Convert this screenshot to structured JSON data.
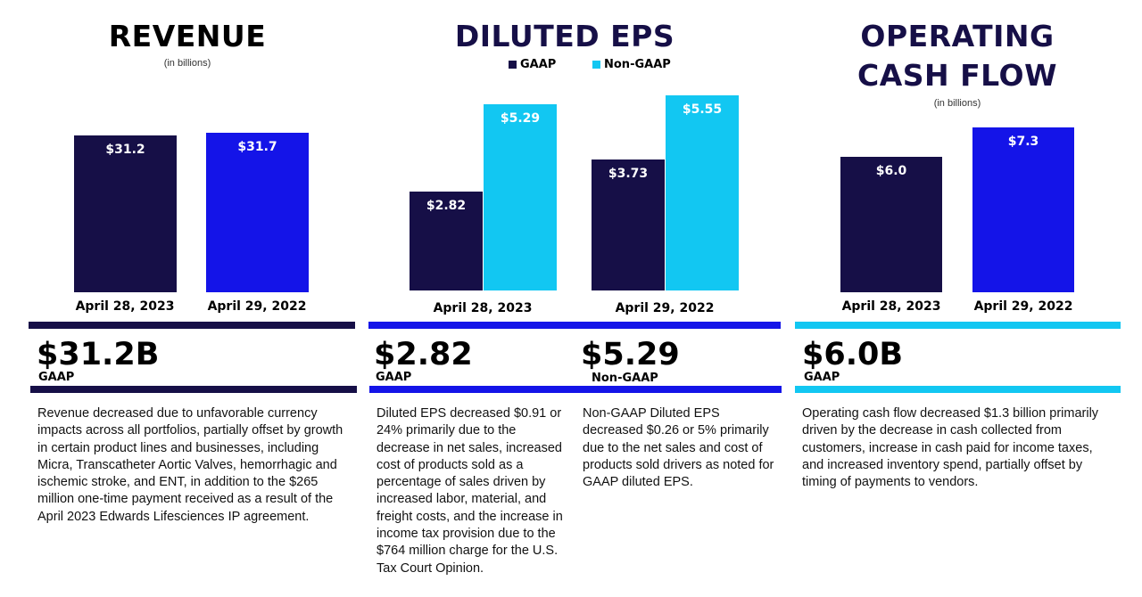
{
  "colors": {
    "navy": "#160f47",
    "blue": "#1414e8",
    "cyan": "#12c7f2"
  },
  "revenue": {
    "title": "REVENUE",
    "subtitle": "(in billions)",
    "headline": "$31.2B",
    "headline_tag": "GAAP",
    "description": "Revenue decreased due to unfavorable currency impacts across all portfolios, partially offset by growth in certain product lines and businesses, including Micra, Transcatheter Aortic Valves, hemorrhagic and ischemic stroke, and ENT, in addition to the $265 million one-time payment received as a result of the April 2023 Edwards Lifesciences IP agreement."
  },
  "eps": {
    "title": "DILUTED EPS",
    "legend": [
      "GAAP",
      "Non-GAAP"
    ],
    "headline_gaap": "$2.82",
    "headline_gaap_tag": "GAAP",
    "headline_nongaap": "$5.29",
    "headline_nongaap_tag": "Non-GAAP",
    "description_gaap": "Diluted EPS decreased $0.91 or 24% primarily due to the decrease in net sales, increased cost of products sold as a percentage of sales driven by increased labor, material, and freight costs, and the increase in income tax provision due to the $764 million charge for the U.S. Tax Court Opinion.",
    "description_nongaap": "Non-GAAP Diluted EPS decreased $0.26 or 5% primarily due to the net sales and cost of products sold drivers as noted for GAAP diluted EPS."
  },
  "ocf": {
    "title_line1": "OPERATING",
    "title_line2": "CASH FLOW",
    "subtitle": "(in billions)",
    "headline": "$6.0B",
    "headline_tag": "GAAP",
    "description": "Operating cash flow decreased $1.3 billion primarily driven by the decrease in cash collected from customers, increase in cash paid for income taxes, and increased inventory spend, partially offset by timing of payments to vendors."
  },
  "chart_data": [
    {
      "type": "bar",
      "title": "REVENUE",
      "subtitle": "(in billions)",
      "categories": [
        "April 28, 2023",
        "April 29, 2022"
      ],
      "values": [
        31.2,
        31.7
      ],
      "labels": [
        "$31.2",
        "$31.7"
      ],
      "colors": [
        "#160f47",
        "#1414e8"
      ],
      "ylim": [
        0,
        31.7
      ],
      "grid": false
    },
    {
      "type": "bar",
      "title": "DILUTED EPS",
      "categories": [
        "April 28, 2023",
        "April 29, 2022"
      ],
      "series": [
        {
          "name": "GAAP",
          "values": [
            2.82,
            3.73
          ],
          "labels": [
            "$2.82",
            "$3.73"
          ],
          "color": "#160f47"
        },
        {
          "name": "Non-GAAP",
          "values": [
            5.29,
            5.55
          ],
          "labels": [
            "$5.29",
            "$5.55"
          ],
          "color": "#12c7f2"
        }
      ],
      "legend": "top",
      "ylim": [
        0,
        5.55
      ],
      "grid": false
    },
    {
      "type": "bar",
      "title": "OPERATING CASH FLOW",
      "subtitle": "(in billions)",
      "categories": [
        "April 28, 2023",
        "April 29, 2022"
      ],
      "values": [
        6.0,
        7.3
      ],
      "labels": [
        "$6.0",
        "$7.3"
      ],
      "colors": [
        "#160f47",
        "#1414e8"
      ],
      "ylim": [
        0,
        7.3
      ],
      "grid": false
    }
  ]
}
